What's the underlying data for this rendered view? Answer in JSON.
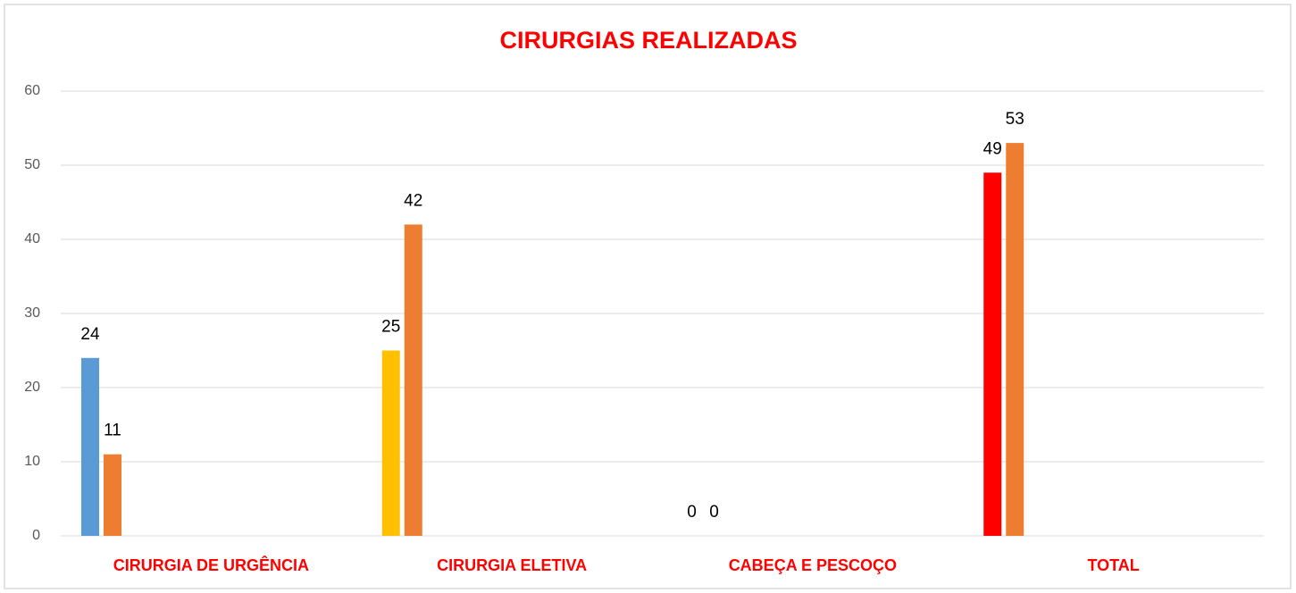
{
  "chart_data": {
    "type": "bar",
    "title": "CIRURGIAS REALIZADAS",
    "categories": [
      "CIRURGIA DE URGÊNCIA",
      "CIRURGIA ELETIVA",
      "CABEÇA E PESCOÇO",
      "TOTAL"
    ],
    "series": [
      {
        "colors": [
          "#5b9bd5",
          "#ffc000",
          "#a5a5a5",
          "#ff0000"
        ],
        "values": [
          24,
          25,
          0,
          49
        ]
      },
      {
        "color": "#ed7d31",
        "values": [
          11,
          42,
          0,
          53
        ]
      }
    ],
    "ylim": [
      0,
      60
    ],
    "yticks": [
      0,
      10,
      20,
      30,
      40,
      50,
      60
    ],
    "grid": true
  }
}
